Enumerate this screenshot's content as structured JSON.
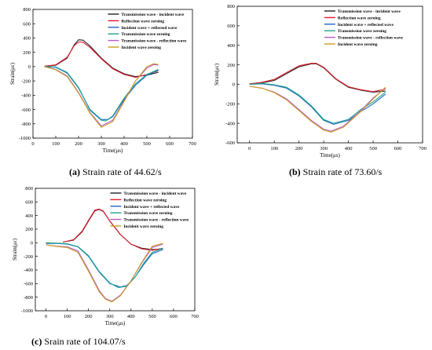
{
  "captions": {
    "a_letter": "(a)",
    "a_text": " Strain rate of 44.62/s",
    "b_letter": "(b)",
    "b_text": " Strain rate of 73.60/s",
    "c_letter": "(c)",
    "c_text": " Srain rate of 104.07/s"
  },
  "legend_colors": {
    "transmission_minus_incident": "#222222",
    "reflection_zeroing": "#e41a2a",
    "incident_plus_reflected": "#2166c8",
    "transmission_zeroing": "#1aa58a",
    "transmission_minus_reflection": "#b85cc8",
    "incident_zeroing": "#c8a020"
  },
  "chart_data": [
    {
      "type": "line",
      "xlabel": "Time(μs)",
      "ylabel": "Strain(με)",
      "xlim": [
        0,
        700
      ],
      "ylim": [
        -1000,
        800
      ],
      "xticks": [
        0,
        100,
        200,
        300,
        400,
        500,
        600,
        700
      ],
      "yticks": [
        -1000,
        -800,
        -600,
        -400,
        -200,
        0,
        200,
        400,
        600,
        800
      ],
      "legend_position": "top-right",
      "grid": false,
      "series": [
        {
          "name": "Transmission wave - incident wave",
          "color": "#222222",
          "x": [
            50,
            100,
            150,
            180,
            200,
            220,
            250,
            300,
            350,
            400,
            450,
            500,
            550
          ],
          "y": [
            5,
            20,
            120,
            300,
            375,
            370,
            290,
            120,
            -20,
            -100,
            -140,
            -120,
            -80
          ]
        },
        {
          "name": "Reflection wave zeroing",
          "color": "#e41a2a",
          "x": [
            50,
            100,
            150,
            180,
            200,
            220,
            250,
            300,
            350,
            400,
            450,
            500,
            550
          ],
          "y": [
            5,
            25,
            130,
            290,
            345,
            340,
            270,
            110,
            -30,
            -110,
            -150,
            -110,
            -60
          ]
        },
        {
          "name": "Incident wave + reflected wave",
          "color": "#2166c8",
          "x": [
            50,
            100,
            150,
            200,
            250,
            300,
            330,
            350,
            400,
            450,
            500,
            550
          ],
          "y": [
            0,
            -10,
            -90,
            -300,
            -600,
            -740,
            -740,
            -700,
            -460,
            -260,
            -120,
            -50
          ]
        },
        {
          "name": "Transmission wave zeroing",
          "color": "#1aa58a",
          "x": [
            50,
            100,
            150,
            200,
            250,
            300,
            320,
            350,
            400,
            450,
            500,
            550
          ],
          "y": [
            0,
            -5,
            -80,
            -290,
            -610,
            -750,
            -760,
            -690,
            -440,
            -240,
            -110,
            -40
          ]
        },
        {
          "name": "Transmission wave - reflection wave",
          "color": "#b85cc8",
          "x": [
            50,
            100,
            150,
            200,
            250,
            300,
            350,
            400,
            450,
            500,
            530,
            550
          ],
          "y": [
            0,
            -40,
            -130,
            -360,
            -640,
            -830,
            -750,
            -480,
            -200,
            -20,
            30,
            20
          ]
        },
        {
          "name": "Incident wave zeroing",
          "color": "#c8a020",
          "x": [
            50,
            100,
            150,
            200,
            250,
            300,
            350,
            400,
            450,
            500,
            530,
            550
          ],
          "y": [
            0,
            -45,
            -140,
            -370,
            -650,
            -850,
            -770,
            -490,
            -200,
            0,
            40,
            30
          ]
        }
      ]
    },
    {
      "type": "line",
      "xlabel": "Time(μs)",
      "ylabel": "Strain(με)",
      "xlim": [
        -50,
        700
      ],
      "ylim": [
        -600,
        800
      ],
      "xticks": [
        0,
        100,
        200,
        300,
        400,
        500,
        600,
        700
      ],
      "yticks": [
        -600,
        -400,
        -200,
        0,
        200,
        400,
        600,
        800
      ],
      "legend_position": "top-right",
      "grid": false,
      "series": [
        {
          "name": "Transmission wave - incident wave",
          "color": "#222222",
          "x": [
            0,
            50,
            100,
            150,
            200,
            250,
            270,
            300,
            350,
            400,
            450,
            500,
            550
          ],
          "y": [
            5,
            15,
            40,
            110,
            180,
            210,
            210,
            170,
            50,
            -30,
            -60,
            -80,
            -70
          ]
        },
        {
          "name": "Reflection wave zeroing",
          "color": "#e41a2a",
          "x": [
            0,
            50,
            100,
            150,
            200,
            250,
            270,
            300,
            350,
            400,
            450,
            500,
            550
          ],
          "y": [
            5,
            20,
            50,
            120,
            190,
            215,
            215,
            175,
            55,
            -25,
            -55,
            -75,
            -50
          ]
        },
        {
          "name": "Incident wave + reflected wave",
          "color": "#2166c8",
          "x": [
            0,
            50,
            100,
            150,
            200,
            250,
            300,
            340,
            400,
            450,
            500,
            550
          ],
          "y": [
            0,
            5,
            -10,
            -40,
            -120,
            -230,
            -370,
            -410,
            -370,
            -280,
            -200,
            -100
          ]
        },
        {
          "name": "Transmission wave zeroing",
          "color": "#1aa58a",
          "x": [
            0,
            50,
            100,
            150,
            200,
            250,
            300,
            340,
            400,
            450,
            500,
            550
          ],
          "y": [
            0,
            10,
            -5,
            -30,
            -110,
            -220,
            -360,
            -400,
            -360,
            -260,
            -180,
            -80
          ]
        },
        {
          "name": "Transmission wave - reflection wave",
          "color": "#b85cc8",
          "x": [
            0,
            50,
            100,
            150,
            200,
            250,
            300,
            330,
            380,
            450,
            500,
            550
          ],
          "y": [
            -20,
            -40,
            -80,
            -150,
            -260,
            -370,
            -460,
            -480,
            -430,
            -270,
            -140,
            -40
          ]
        },
        {
          "name": "Incident wave zeroing",
          "color": "#c8a020",
          "x": [
            0,
            50,
            100,
            150,
            200,
            250,
            300,
            330,
            380,
            450,
            500,
            550
          ],
          "y": [
            -20,
            -40,
            -85,
            -160,
            -270,
            -380,
            -470,
            -490,
            -440,
            -280,
            -150,
            -30
          ]
        }
      ]
    },
    {
      "type": "line",
      "xlabel": "Time(μs)",
      "ylabel": "Strain(με)",
      "xlim": [
        -50,
        700
      ],
      "ylim": [
        -1000,
        800
      ],
      "xticks": [
        0,
        100,
        200,
        300,
        400,
        500,
        600,
        700
      ],
      "yticks": [
        -1000,
        -800,
        -600,
        -400,
        -200,
        0,
        200,
        400,
        600,
        800
      ],
      "legend_position": "top-right",
      "grid": false,
      "series": [
        {
          "name": "Transmission wave - incident wave",
          "color": "#222222",
          "x": [
            80,
            130,
            170,
            200,
            230,
            250,
            270,
            300,
            350,
            400,
            450,
            500,
            550
          ],
          "y": [
            10,
            40,
            160,
            320,
            470,
            490,
            460,
            320,
            120,
            -20,
            -80,
            -100,
            -90
          ]
        },
        {
          "name": "Reflection wave zeroing",
          "color": "#e41a2a",
          "x": [
            80,
            130,
            170,
            200,
            230,
            250,
            270,
            300,
            350,
            400,
            450,
            500,
            550
          ],
          "y": [
            10,
            45,
            170,
            330,
            480,
            495,
            465,
            320,
            120,
            -20,
            -90,
            -110,
            -80
          ]
        },
        {
          "name": "Incident wave + reflected wave",
          "color": "#2166c8",
          "x": [
            0,
            50,
            100,
            150,
            200,
            250,
            300,
            350,
            380,
            420,
            460,
            500,
            550
          ],
          "y": [
            -10,
            -10,
            -20,
            -60,
            -200,
            -430,
            -600,
            -650,
            -630,
            -500,
            -320,
            -160,
            -100
          ]
        },
        {
          "name": "Transmission wave zeroing",
          "color": "#1aa58a",
          "x": [
            0,
            50,
            100,
            150,
            200,
            250,
            300,
            340,
            380,
            420,
            460,
            500,
            550
          ],
          "y": [
            0,
            -5,
            -15,
            -55,
            -190,
            -420,
            -590,
            -660,
            -640,
            -500,
            -300,
            -140,
            -80
          ]
        },
        {
          "name": "Transmission wave - reflection wave",
          "color": "#b85cc8",
          "x": [
            0,
            50,
            100,
            150,
            200,
            250,
            280,
            310,
            350,
            400,
            450,
            500,
            550
          ],
          "y": [
            -30,
            -50,
            -60,
            -120,
            -400,
            -700,
            -820,
            -860,
            -770,
            -560,
            -300,
            -70,
            -20
          ]
        },
        {
          "name": "Incident wave zeroing",
          "color": "#c8a020",
          "x": [
            0,
            50,
            100,
            150,
            200,
            250,
            280,
            310,
            350,
            400,
            450,
            500,
            550
          ],
          "y": [
            -30,
            -55,
            -70,
            -140,
            -420,
            -720,
            -830,
            -870,
            -780,
            -560,
            -290,
            -50,
            -10
          ]
        }
      ]
    }
  ]
}
